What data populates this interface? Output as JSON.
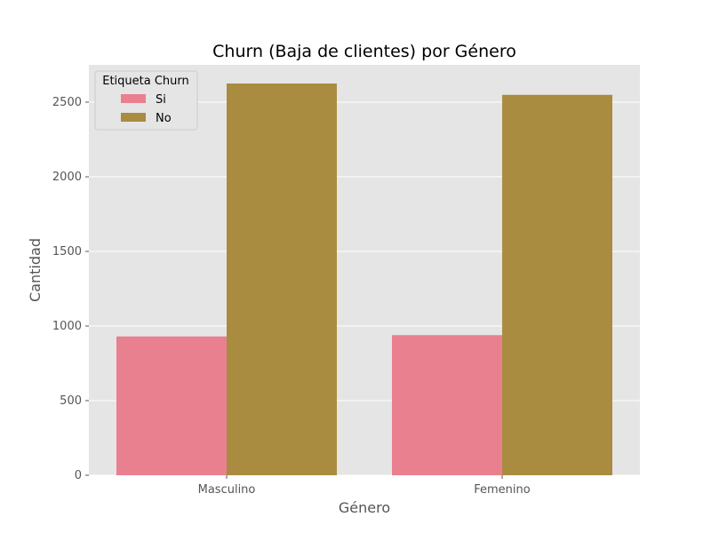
{
  "chart_data": {
    "type": "bar",
    "title": "Churn (Baja de clientes) por Género",
    "xlabel": "Género",
    "ylabel": "Cantidad",
    "categories": [
      "Masculino",
      "Femenino"
    ],
    "series": [
      {
        "name": "Si",
        "values": [
          930,
          939
        ],
        "color": "#e8808f"
      },
      {
        "name": "No",
        "values": [
          2625,
          2549
        ],
        "color": "#a98c3f"
      }
    ],
    "ylim": [
      0,
      2750
    ],
    "yticks": [
      0,
      500,
      1000,
      1500,
      2000,
      2500
    ],
    "ytick_labels": [
      "0",
      "500",
      "1000",
      "1500",
      "2000",
      "2500"
    ],
    "grid": true,
    "legend": {
      "title": "Etiqueta Churn",
      "position": "top-left"
    },
    "background_color": "#e5e5e5",
    "grid_color": "#ffffff"
  }
}
